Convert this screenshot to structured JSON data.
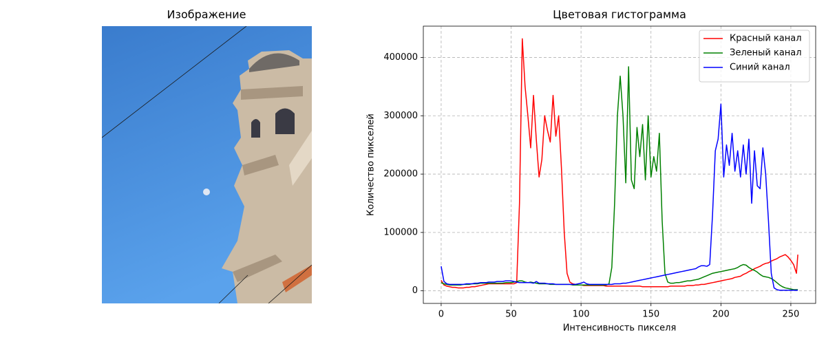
{
  "chart_data": [
    {
      "type": "image",
      "title": "Изображение"
    },
    {
      "type": "line",
      "title": "Цветовая гистограмма",
      "xlabel": "Интенсивность пикселя",
      "ylabel": "Количество пикселей",
      "xlim": [
        -12.75,
        267.75
      ],
      "xticks": [
        0,
        50,
        100,
        150,
        200,
        250
      ],
      "ylim": [
        -21600,
        453600
      ],
      "yticks": [
        0,
        100000,
        200000,
        300000,
        400000
      ],
      "grid": true,
      "legend": "upper right",
      "x": [
        0,
        2,
        4,
        6,
        8,
        10,
        12,
        14,
        16,
        18,
        20,
        22,
        24,
        26,
        28,
        30,
        32,
        34,
        36,
        38,
        40,
        42,
        44,
        46,
        48,
        50,
        52,
        54,
        56,
        58,
        60,
        62,
        64,
        66,
        68,
        70,
        72,
        74,
        76,
        78,
        80,
        82,
        84,
        86,
        88,
        90,
        92,
        94,
        96,
        98,
        100,
        102,
        104,
        106,
        108,
        110,
        112,
        114,
        116,
        118,
        120,
        122,
        124,
        126,
        128,
        130,
        132,
        134,
        136,
        138,
        140,
        142,
        144,
        146,
        148,
        150,
        152,
        154,
        156,
        158,
        160,
        162,
        164,
        166,
        168,
        170,
        172,
        174,
        176,
        178,
        180,
        182,
        184,
        186,
        188,
        190,
        192,
        194,
        196,
        198,
        200,
        202,
        204,
        206,
        208,
        210,
        212,
        214,
        216,
        218,
        220,
        222,
        224,
        226,
        228,
        230,
        232,
        234,
        236,
        238,
        240,
        242,
        244,
        246,
        248,
        250,
        252,
        254,
        255
      ],
      "series": [
        {
          "name": "Красный канал",
          "color": "#ff0000",
          "values": [
            18000,
            10000,
            8000,
            7000,
            6000,
            6000,
            5000,
            5000,
            5000,
            6000,
            6000,
            7000,
            7000,
            8000,
            9000,
            10000,
            11000,
            12000,
            12000,
            12000,
            12000,
            12000,
            12000,
            12000,
            12000,
            12000,
            12000,
            14000,
            150000,
            432000,
            350000,
            300000,
            245000,
            335000,
            260000,
            195000,
            225000,
            300000,
            275000,
            255000,
            335000,
            265000,
            300000,
            210000,
            100000,
            30000,
            15000,
            12000,
            11000,
            10000,
            10000,
            9000,
            9000,
            9000,
            9000,
            9000,
            9000,
            9000,
            9000,
            8000,
            8000,
            8000,
            8000,
            8000,
            8000,
            8000,
            8000,
            8000,
            8000,
            8000,
            8000,
            8000,
            7000,
            7000,
            7000,
            7000,
            7000,
            7000,
            7000,
            7000,
            7000,
            7000,
            8000,
            8000,
            8000,
            8000,
            8000,
            8000,
            9000,
            9000,
            9000,
            10000,
            10000,
            11000,
            11000,
            12000,
            13000,
            14000,
            15000,
            16000,
            17000,
            18000,
            19000,
            20000,
            21000,
            23000,
            24000,
            25000,
            28000,
            30000,
            33000,
            35000,
            38000,
            40000,
            42000,
            45000,
            47000,
            48000,
            51000,
            53000,
            55000,
            58000,
            60000,
            62000,
            58000,
            52000,
            45000,
            30000,
            62000
          ]
        },
        {
          "name": "Зеленый канал",
          "color": "#008000",
          "values": [
            14000,
            12000,
            11000,
            10000,
            10000,
            10000,
            10000,
            10000,
            11000,
            11000,
            11000,
            12000,
            12000,
            12000,
            13000,
            13000,
            13000,
            13000,
            13000,
            13000,
            13000,
            13000,
            13000,
            14000,
            14000,
            14000,
            15000,
            16000,
            17000,
            17000,
            15000,
            14000,
            15000,
            14000,
            13000,
            12000,
            12000,
            12000,
            12000,
            11000,
            11000,
            11000,
            11000,
            11000,
            11000,
            11000,
            11000,
            10000,
            10000,
            10000,
            10000,
            10000,
            10000,
            10000,
            10000,
            10000,
            10000,
            10000,
            10000,
            10000,
            12000,
            40000,
            150000,
            300000,
            368000,
            300000,
            185000,
            384000,
            190000,
            175000,
            280000,
            230000,
            285000,
            190000,
            300000,
            195000,
            230000,
            205000,
            270000,
            120000,
            30000,
            15000,
            13000,
            13000,
            14000,
            14000,
            15000,
            16000,
            17000,
            17000,
            18000,
            19000,
            20000,
            22000,
            24000,
            26000,
            28000,
            30000,
            31000,
            32000,
            33000,
            34000,
            35000,
            36000,
            37000,
            38000,
            40000,
            43000,
            45000,
            44000,
            40000,
            37000,
            35000,
            32000,
            28000,
            25000,
            24000,
            23000,
            21000,
            18000,
            14000,
            10000,
            7000,
            5000,
            4000,
            3000,
            2000,
            2000,
            2000
          ]
        },
        {
          "name": "Синий канал",
          "color": "#0000ff",
          "values": [
            42000,
            16000,
            12000,
            11000,
            11000,
            11000,
            11000,
            11000,
            11000,
            12000,
            12000,
            12000,
            13000,
            13000,
            14000,
            14000,
            14000,
            15000,
            15000,
            15000,
            16000,
            16000,
            16000,
            17000,
            17000,
            17000,
            16000,
            15000,
            14000,
            14000,
            14000,
            14000,
            14000,
            13000,
            16000,
            13000,
            13000,
            13000,
            12000,
            12000,
            12000,
            11000,
            11000,
            11000,
            11000,
            11000,
            11000,
            11000,
            11000,
            12000,
            13000,
            15000,
            12000,
            11000,
            11000,
            11000,
            11000,
            11000,
            11000,
            11000,
            11000,
            11000,
            12000,
            12000,
            12000,
            13000,
            13000,
            14000,
            15000,
            16000,
            17000,
            18000,
            19000,
            20000,
            21000,
            22000,
            23000,
            24000,
            25000,
            26000,
            27000,
            28000,
            29000,
            30000,
            31000,
            32000,
            33000,
            34000,
            35000,
            36000,
            37000,
            38000,
            41000,
            43000,
            43000,
            42000,
            45000,
            130000,
            240000,
            260000,
            320000,
            195000,
            250000,
            215000,
            270000,
            205000,
            240000,
            195000,
            250000,
            200000,
            260000,
            150000,
            240000,
            180000,
            175000,
            245000,
            200000,
            120000,
            30000,
            5000,
            2000,
            1000,
            1000,
            1000,
            1000,
            1000,
            1000,
            1000,
            1000
          ]
        }
      ]
    }
  ]
}
